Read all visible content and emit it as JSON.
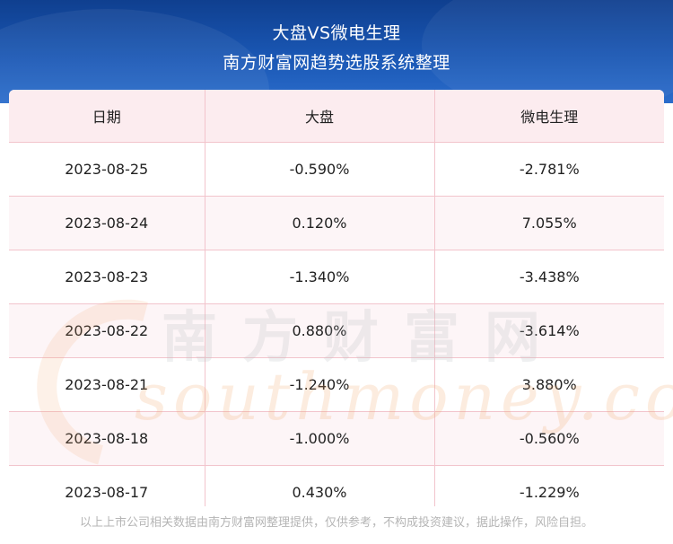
{
  "header": {
    "title": "大盘VS微电生理",
    "subtitle": "南方财富网趋势选股系统整理"
  },
  "table": {
    "columns": [
      "日期",
      "大盘",
      "微电生理"
    ],
    "rows": [
      [
        "2023-08-25",
        "-0.590%",
        "-2.781%"
      ],
      [
        "2023-08-24",
        "0.120%",
        "7.055%"
      ],
      [
        "2023-08-23",
        "-1.340%",
        "-3.438%"
      ],
      [
        "2023-08-22",
        "0.880%",
        "-3.614%"
      ],
      [
        "2023-08-21",
        "-1.240%",
        "3.880%"
      ],
      [
        "2023-08-18",
        "-1.000%",
        "-0.560%"
      ],
      [
        "2023-08-17",
        "0.430%",
        "-1.229%"
      ]
    ]
  },
  "watermark": {
    "cn": "南方财富网",
    "en": "southmoney.com"
  },
  "footer": {
    "disclaimer": "以上上市公司相关数据由南方财富网整理提供，仅供参考，不构成投资建议，据此操作，风险自担。"
  },
  "colors": {
    "banner": "#1a57b4",
    "header_row": "#fcecef",
    "grid_line": "#f2c4cc"
  }
}
